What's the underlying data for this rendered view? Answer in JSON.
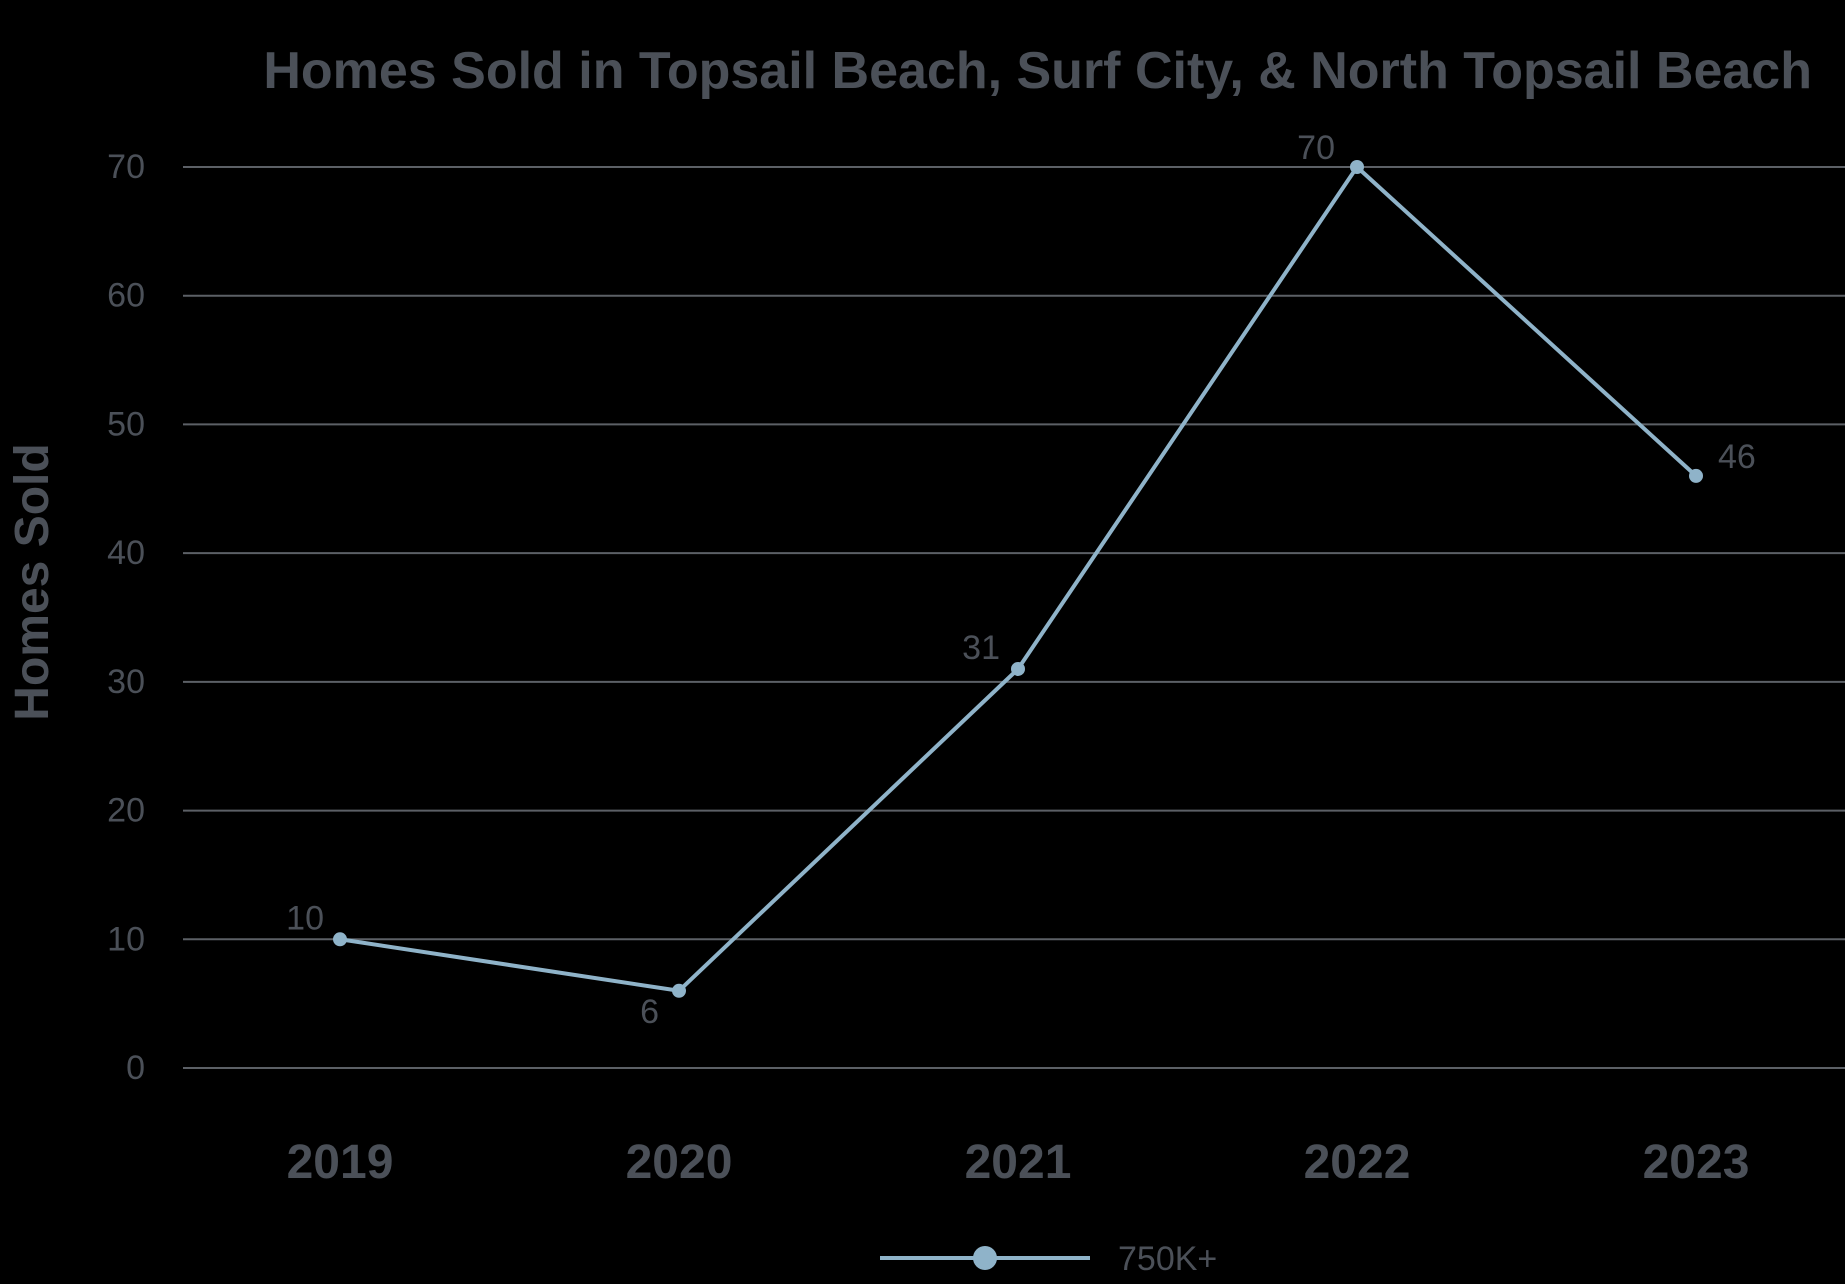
{
  "chart_data": {
    "type": "line",
    "title": "Homes Sold in Topsail Beach, Surf City, & North Topsail Beach",
    "xlabel": "",
    "ylabel": "Homes Sold",
    "categories": [
      "2019",
      "2020",
      "2021",
      "2022",
      "2023"
    ],
    "series": [
      {
        "name": "750K+",
        "values": [
          10,
          6,
          31,
          70,
          46
        ],
        "color": "#8fb3c9"
      }
    ],
    "ylim": [
      0,
      70
    ],
    "yticks": [
      0,
      10,
      20,
      30,
      40,
      50,
      60,
      70
    ],
    "grid": true,
    "legend_position": "bottom-center",
    "data_labels": true
  },
  "colors": {
    "background": "#000000",
    "text": "#4b5058",
    "gridline": "#5c6066",
    "series_line": "#8fb3c9"
  }
}
